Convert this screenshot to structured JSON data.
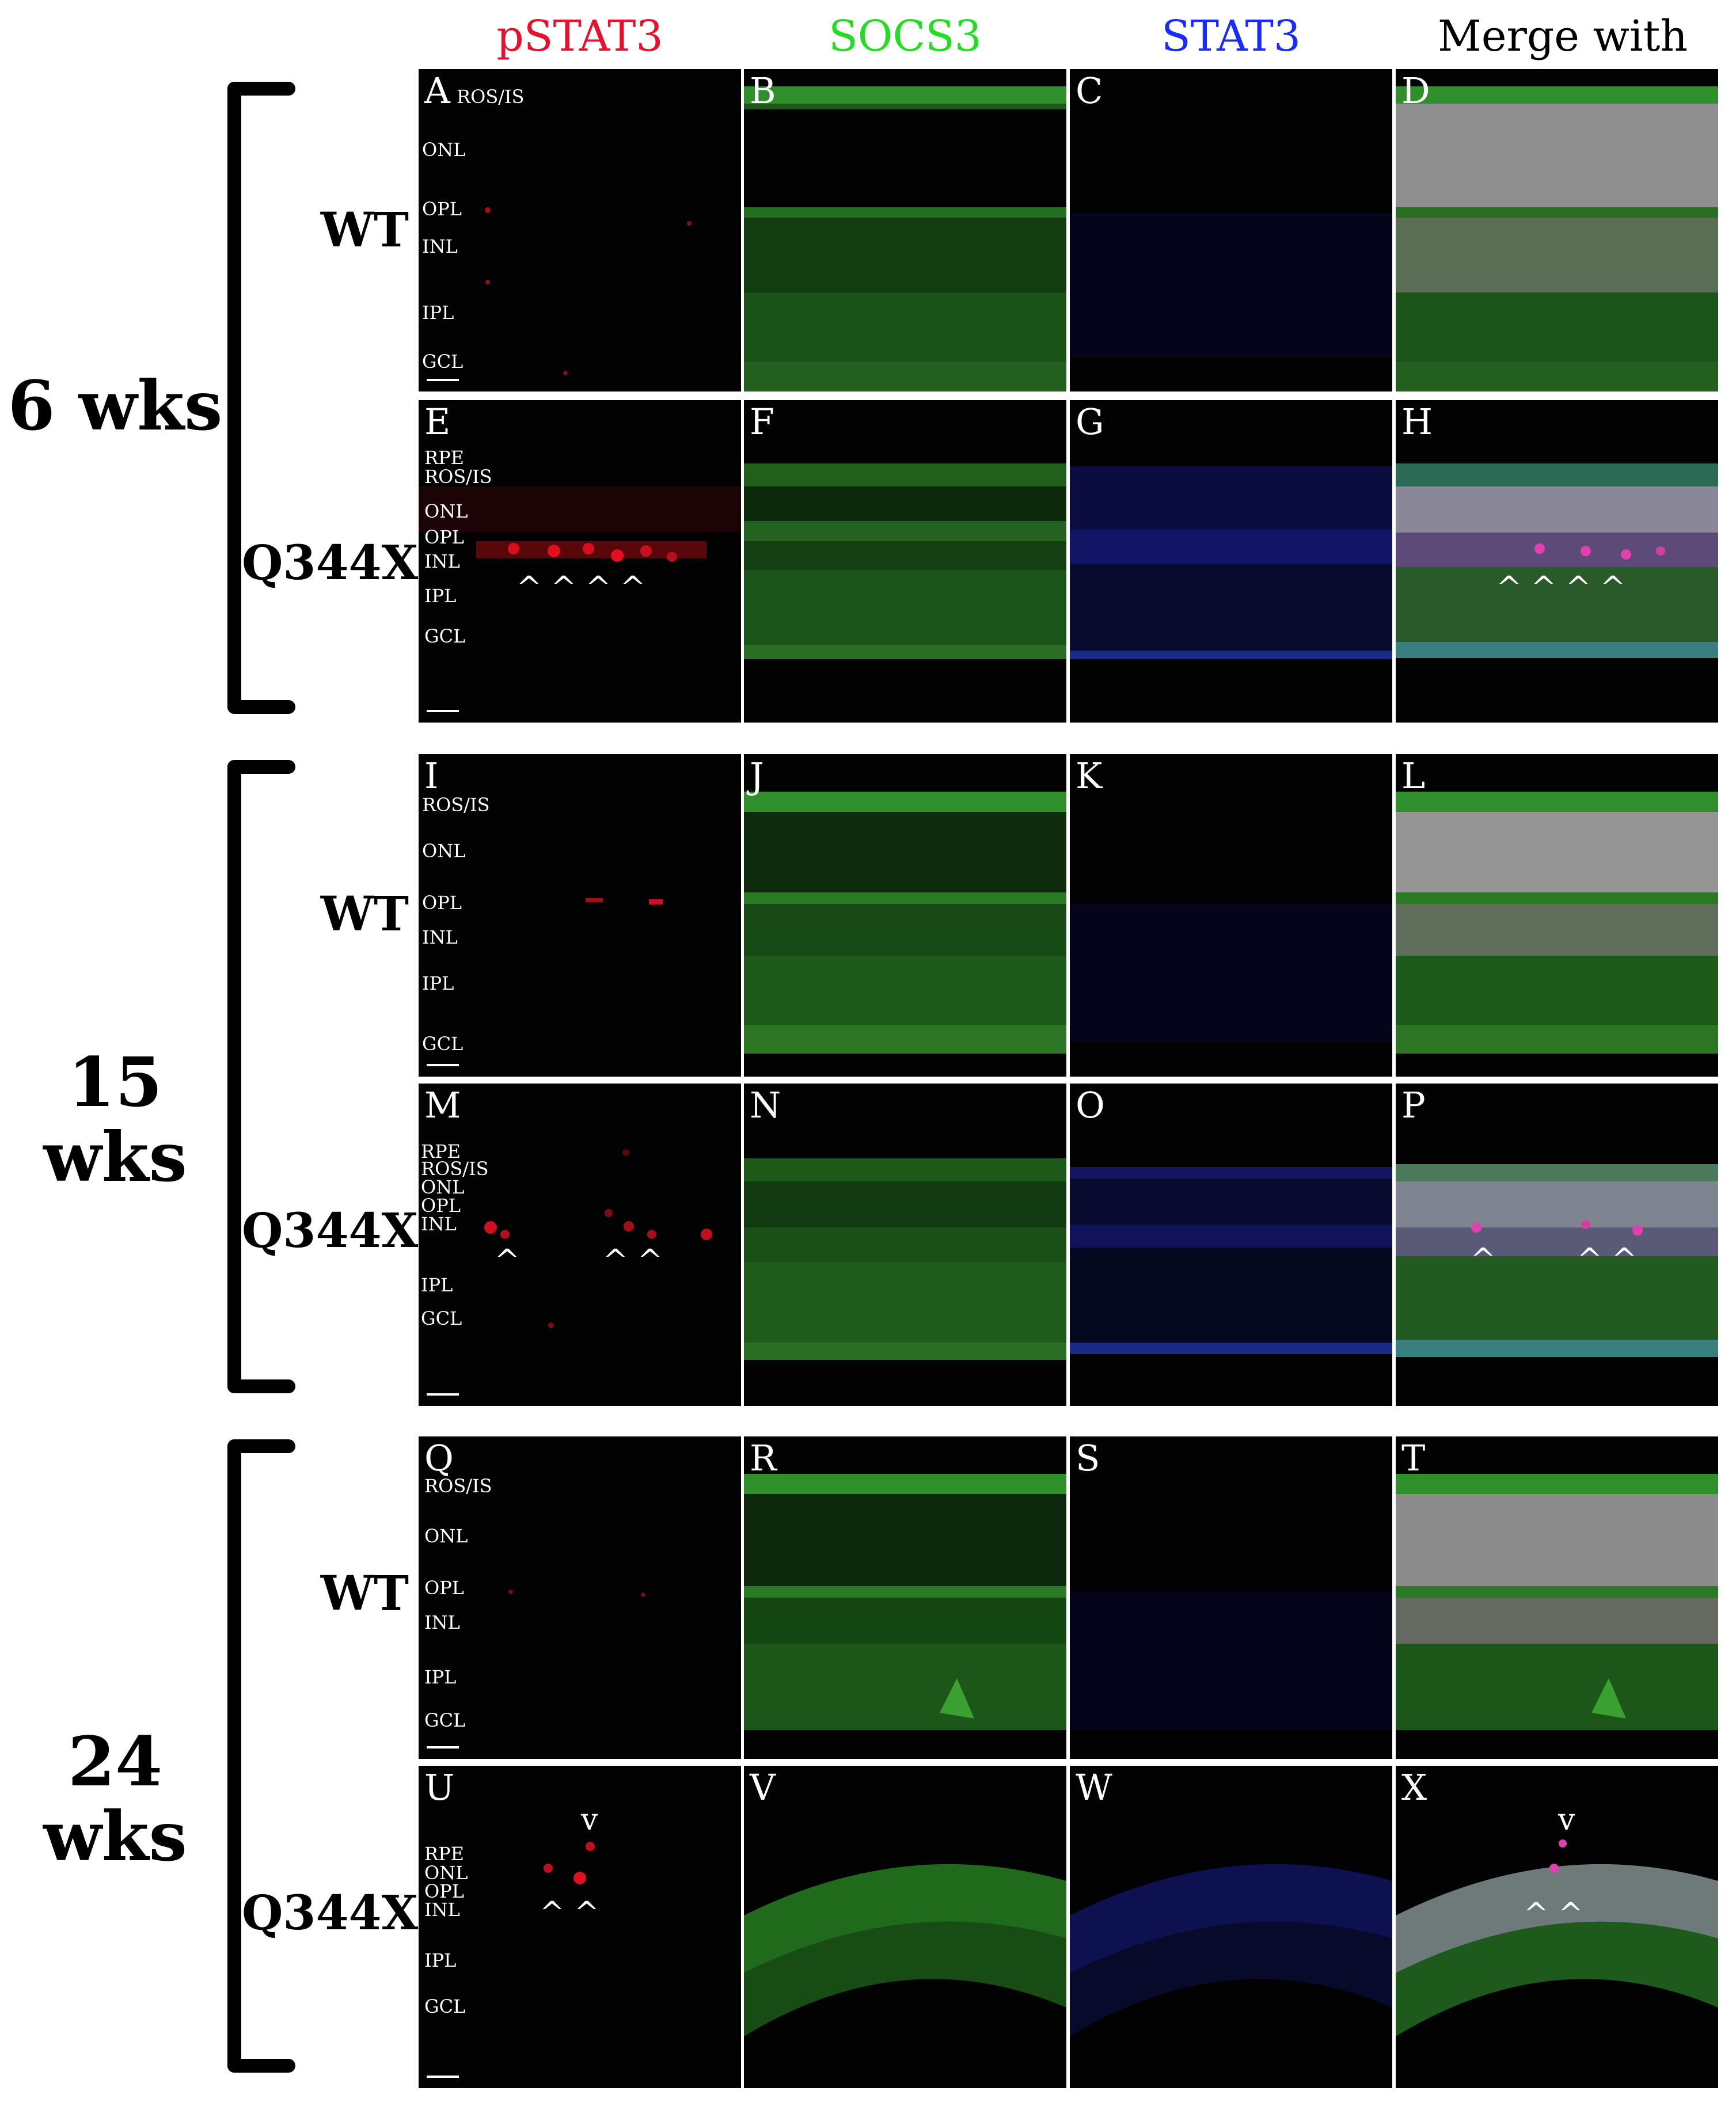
{
  "columns": [
    {
      "label": "pSTAT3",
      "color": "#e8102a"
    },
    {
      "label": "SOCS3",
      "color": "#22dd22"
    },
    {
      "label": "STAT3",
      "color": "#1a2bff"
    },
    {
      "label": "Merge with DAPI",
      "color": "#000000"
    }
  ],
  "timepoints": [
    "6 wks",
    "15 wks",
    "24 wks"
  ],
  "genotypes": [
    "WT",
    "Q344X",
    "WT",
    "Q344X",
    "WT",
    "Q344X"
  ],
  "panel_letters": [
    "A",
    "B",
    "C",
    "D",
    "E",
    "F",
    "G",
    "H",
    "I",
    "J",
    "K",
    "L",
    "M",
    "N",
    "O",
    "P",
    "Q",
    "R",
    "S",
    "T",
    "U",
    "V",
    "W",
    "X"
  ],
  "layer_labels": [
    [
      "ROS/IS",
      "ONL",
      "OPL",
      "INL",
      "IPL",
      "GCL"
    ],
    [
      "RPE",
      "ROS/IS",
      "ONL",
      "OPL",
      "INL",
      "IPL",
      "GCL"
    ],
    [
      "ROS/IS",
      "ONL",
      "OPL",
      "INL",
      "IPL",
      "GCL"
    ],
    [
      "RPE",
      "ROS/IS",
      "ONL",
      "OPL",
      "INL",
      "IPL",
      "GCL"
    ],
    [
      "ROS/IS",
      "ONL",
      "OPL",
      "INL",
      "IPL",
      "GCL"
    ],
    [
      "RPE",
      "ONL",
      "OPL",
      "INL",
      "IPL",
      "GCL"
    ]
  ],
  "arrowheads": {
    "E": "^  ^  ^  ^",
    "H": "^  ^  ^  ^",
    "M": "^",
    "M2": "^  ^",
    "P": "^",
    "P2": "^  ^",
    "U_top": "v",
    "U": "^  ^",
    "X_top": "v",
    "X": "^  ^"
  }
}
